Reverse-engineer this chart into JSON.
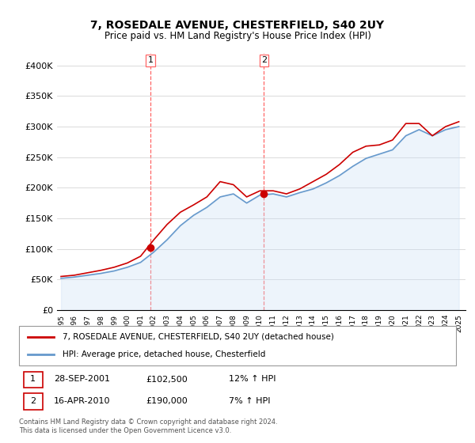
{
  "title": "7, ROSEDALE AVENUE, CHESTERFIELD, S40 2UY",
  "subtitle": "Price paid vs. HM Land Registry's House Price Index (HPI)",
  "ylabel": "",
  "ylim": [
    0,
    420000
  ],
  "yticks": [
    0,
    50000,
    100000,
    150000,
    200000,
    250000,
    300000,
    350000,
    400000
  ],
  "ytick_labels": [
    "£0",
    "£50K",
    "£100K",
    "£150K",
    "£200K",
    "£250K",
    "£300K",
    "£350K",
    "£400K"
  ],
  "legend_entry1": "7, ROSEDALE AVENUE, CHESTERFIELD, S40 2UY (detached house)",
  "legend_entry2": "HPI: Average price, detached house, Chesterfield",
  "transaction1_label": "1",
  "transaction1_date": "28-SEP-2001",
  "transaction1_price": "£102,500",
  "transaction1_hpi": "12% ↑ HPI",
  "transaction2_label": "2",
  "transaction2_date": "16-APR-2010",
  "transaction2_price": "£190,000",
  "transaction2_hpi": "7% ↑ HPI",
  "footer": "Contains HM Land Registry data © Crown copyright and database right 2024.\nThis data is licensed under the Open Government Licence v3.0.",
  "red_color": "#cc0000",
  "blue_color": "#6699cc",
  "blue_fill": "#cce0f5",
  "vline_color": "#ff6666",
  "marker1_x": 2001.75,
  "marker1_y": 102500,
  "marker2_x": 2010.3,
  "marker2_y": 190000,
  "hpi_years": [
    1995,
    1996,
    1997,
    1998,
    1999,
    2000,
    2001,
    2002,
    2003,
    2004,
    2005,
    2006,
    2007,
    2008,
    2009,
    2010,
    2011,
    2012,
    2013,
    2014,
    2015,
    2016,
    2017,
    2018,
    2019,
    2020,
    2021,
    2022,
    2023,
    2024,
    2025
  ],
  "hpi_values": [
    52000,
    54000,
    57000,
    60000,
    64000,
    70000,
    78000,
    95000,
    115000,
    138000,
    155000,
    168000,
    185000,
    190000,
    175000,
    188000,
    190000,
    185000,
    192000,
    198000,
    208000,
    220000,
    235000,
    248000,
    255000,
    262000,
    285000,
    295000,
    285000,
    295000,
    300000
  ],
  "price_years": [
    1995,
    1996,
    1997,
    1998,
    1999,
    2000,
    2001,
    2002,
    2003,
    2004,
    2005,
    2006,
    2007,
    2008,
    2009,
    2010,
    2011,
    2012,
    2013,
    2014,
    2015,
    2016,
    2017,
    2018,
    2019,
    2020,
    2021,
    2022,
    2023,
    2024,
    2025
  ],
  "price_values": [
    55000,
    57000,
    61000,
    65000,
    70000,
    77000,
    88000,
    115000,
    140000,
    160000,
    172000,
    185000,
    210000,
    205000,
    185000,
    195000,
    195000,
    190000,
    198000,
    210000,
    222000,
    238000,
    258000,
    268000,
    270000,
    278000,
    305000,
    305000,
    285000,
    300000,
    308000
  ],
  "xlim_start": 1995,
  "xlim_end": 2025.5
}
